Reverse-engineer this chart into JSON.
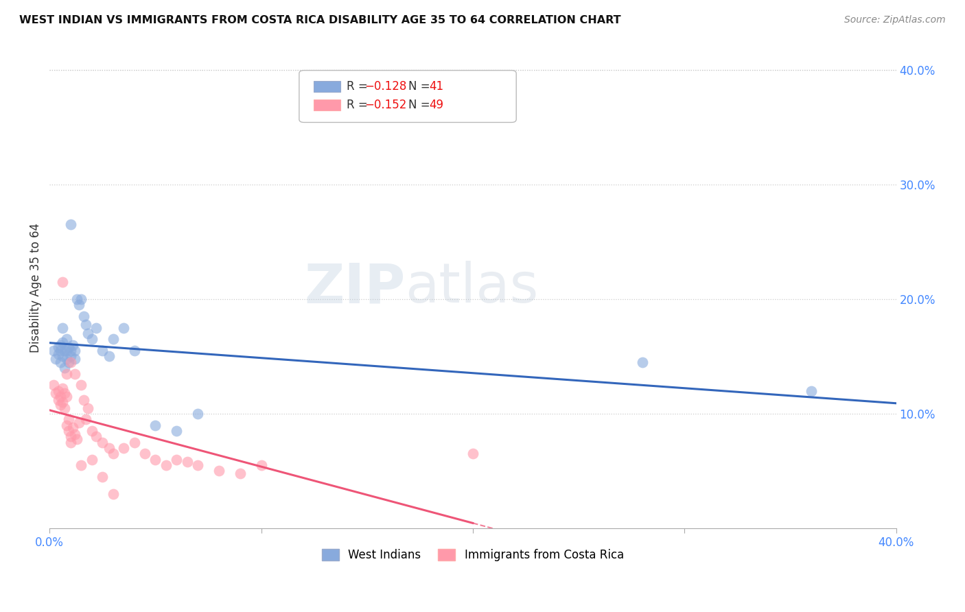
{
  "title": "WEST INDIAN VS IMMIGRANTS FROM COSTA RICA DISABILITY AGE 35 TO 64 CORRELATION CHART",
  "source": "Source: ZipAtlas.com",
  "ylabel": "Disability Age 35 to 64",
  "right_yticks": [
    "40.0%",
    "30.0%",
    "20.0%",
    "10.0%"
  ],
  "right_ytick_vals": [
    0.4,
    0.3,
    0.2,
    0.1
  ],
  "xmin": 0.0,
  "xmax": 0.4,
  "ymin": 0.0,
  "ymax": 0.42,
  "blue_color": "#88AADD",
  "pink_color": "#FF99AA",
  "blue_line_color": "#3366BB",
  "pink_line_color": "#EE5577",
  "west_indian_x": [
    0.002,
    0.003,
    0.004,
    0.004,
    0.005,
    0.005,
    0.005,
    0.006,
    0.006,
    0.007,
    0.007,
    0.008,
    0.008,
    0.009,
    0.009,
    0.01,
    0.01,
    0.011,
    0.012,
    0.012,
    0.013,
    0.014,
    0.015,
    0.016,
    0.017,
    0.018,
    0.02,
    0.022,
    0.025,
    0.028,
    0.03,
    0.035,
    0.04,
    0.05,
    0.06,
    0.07,
    0.01,
    0.008,
    0.006,
    0.28,
    0.36
  ],
  "west_indian_y": [
    0.155,
    0.148,
    0.152,
    0.158,
    0.145,
    0.16,
    0.155,
    0.15,
    0.162,
    0.14,
    0.155,
    0.148,
    0.165,
    0.145,
    0.158,
    0.155,
    0.15,
    0.16,
    0.148,
    0.155,
    0.2,
    0.195,
    0.2,
    0.185,
    0.178,
    0.17,
    0.165,
    0.175,
    0.155,
    0.15,
    0.165,
    0.175,
    0.155,
    0.09,
    0.085,
    0.1,
    0.265,
    0.155,
    0.175,
    0.145,
    0.12
  ],
  "costa_rica_x": [
    0.002,
    0.003,
    0.004,
    0.004,
    0.005,
    0.005,
    0.006,
    0.006,
    0.007,
    0.007,
    0.008,
    0.008,
    0.009,
    0.009,
    0.01,
    0.01,
    0.011,
    0.012,
    0.013,
    0.014,
    0.015,
    0.016,
    0.017,
    0.018,
    0.02,
    0.022,
    0.025,
    0.028,
    0.03,
    0.035,
    0.04,
    0.045,
    0.05,
    0.055,
    0.06,
    0.065,
    0.07,
    0.08,
    0.09,
    0.1,
    0.006,
    0.008,
    0.01,
    0.012,
    0.015,
    0.02,
    0.025,
    0.03,
    0.2
  ],
  "costa_rica_y": [
    0.125,
    0.118,
    0.112,
    0.12,
    0.115,
    0.108,
    0.122,
    0.11,
    0.118,
    0.105,
    0.115,
    0.09,
    0.085,
    0.095,
    0.08,
    0.075,
    0.088,
    0.082,
    0.078,
    0.092,
    0.125,
    0.112,
    0.095,
    0.105,
    0.085,
    0.08,
    0.075,
    0.07,
    0.065,
    0.07,
    0.075,
    0.065,
    0.06,
    0.055,
    0.06,
    0.058,
    0.055,
    0.05,
    0.048,
    0.055,
    0.215,
    0.135,
    0.145,
    0.135,
    0.055,
    0.06,
    0.045,
    0.03,
    0.065
  ]
}
